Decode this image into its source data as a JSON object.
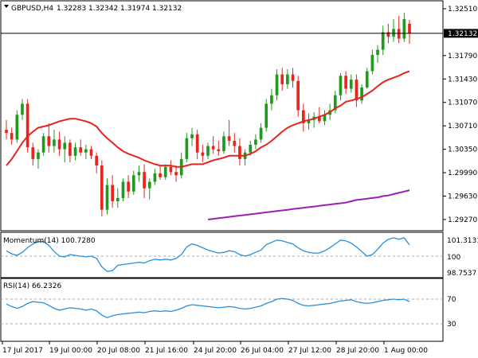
{
  "header": {
    "symbol": "GBPUSD,H4",
    "open": "1.32283",
    "high": "1.32342",
    "low": "1.31974",
    "close": "1.32132"
  },
  "colors": {
    "bull": "#1f9a1f",
    "bear": "#e8241c",
    "ma_fast": "#e8241c",
    "ma_slow": "#9b1fb5",
    "oscillator": "#2b8fd9",
    "current_price_box": "#000000"
  },
  "price_axis": {
    "ticks": [
      "1.32510",
      "1.31790",
      "1.31430",
      "1.31070",
      "1.30710",
      "1.30350",
      "1.29990",
      "1.29630",
      "1.29270"
    ],
    "current_price": "1.32132"
  },
  "momentum": {
    "title": "Momentum(14) 100.7280",
    "ticks": [
      "101.3131",
      "100",
      "98.7537"
    ]
  },
  "rsi": {
    "title": "RSI(14) 66.2326",
    "ticks": [
      "70",
      "30"
    ]
  },
  "time_axis": {
    "labels": [
      "17 Jul 2017",
      "19 Jul 00:00",
      "20 Jul 08:00",
      "21 Jul 16:00",
      "24 Jul 20:00",
      "26 Jul 04:00",
      "27 Jul 12:00",
      "28 Jul 20:00",
      "1 Aug 00:00"
    ]
  },
  "chart_data": {
    "type": "candlestick",
    "x_labels": [
      "17 Jul 2017",
      "19 Jul 00:00",
      "20 Jul 08:00",
      "21 Jul 16:00",
      "24 Jul 20:00",
      "26 Jul 04:00",
      "27 Jul 12:00",
      "28 Jul 20:00",
      "1 Aug 00:00"
    ],
    "ylim": [
      1.2911,
      1.3262
    ],
    "candles": [
      [
        1.3065,
        1.308,
        1.305,
        1.306
      ],
      [
        1.306,
        1.3068,
        1.3042,
        1.305
      ],
      [
        1.305,
        1.3095,
        1.3045,
        1.3088
      ],
      [
        1.3088,
        1.3112,
        1.308,
        1.3105
      ],
      [
        1.3105,
        1.3112,
        1.303,
        1.3038
      ],
      [
        1.3038,
        1.3045,
        1.301,
        1.302
      ],
      [
        1.302,
        1.3035,
        1.3005,
        1.303
      ],
      [
        1.303,
        1.306,
        1.3025,
        1.3055
      ],
      [
        1.3055,
        1.3075,
        1.303,
        1.304
      ],
      [
        1.304,
        1.3065,
        1.303,
        1.305
      ],
      [
        1.305,
        1.3062,
        1.3025,
        1.3035
      ],
      [
        1.3035,
        1.3055,
        1.3015,
        1.3045
      ],
      [
        1.3045,
        1.305,
        1.3015,
        1.3025
      ],
      [
        1.3025,
        1.3045,
        1.3018,
        1.3038
      ],
      [
        1.3038,
        1.305,
        1.3025,
        1.303
      ],
      [
        1.303,
        1.3042,
        1.302,
        1.3035
      ],
      [
        1.3035,
        1.304,
        1.302,
        1.3025
      ],
      [
        1.3025,
        1.303,
        1.2998,
        1.301
      ],
      [
        1.301,
        1.3018,
        1.2932,
        1.2942
      ],
      [
        1.2942,
        1.299,
        1.2935,
        1.298
      ],
      [
        1.298,
        1.2995,
        1.2945,
        1.2955
      ],
      [
        1.2955,
        1.2975,
        1.2945,
        1.296
      ],
      [
        1.296,
        1.299,
        1.2955,
        1.2985
      ],
      [
        1.2985,
        1.2995,
        1.296,
        1.297
      ],
      [
        1.297,
        1.3002,
        1.2965,
        1.2995
      ],
      [
        1.2995,
        1.301,
        1.2985,
        1.3
      ],
      [
        1.3,
        1.3012,
        1.296,
        1.2975
      ],
      [
        1.2975,
        1.299,
        1.2958,
        1.2985
      ],
      [
        1.2985,
        1.3005,
        1.298,
        1.2998
      ],
      [
        1.2998,
        1.301,
        1.2988,
        1.2992
      ],
      [
        1.2992,
        1.3012,
        1.2988,
        1.3008
      ],
      [
        1.3008,
        1.3018,
        1.2995,
        1.3
      ],
      [
        1.3,
        1.301,
        1.2985,
        1.2995
      ],
      [
        1.2995,
        1.303,
        1.299,
        1.302
      ],
      [
        1.302,
        1.306,
        1.3015,
        1.3052
      ],
      [
        1.3052,
        1.3068,
        1.304,
        1.3058
      ],
      [
        1.3058,
        1.3065,
        1.302,
        1.303
      ],
      [
        1.303,
        1.3042,
        1.3015,
        1.3025
      ],
      [
        1.3025,
        1.3045,
        1.302,
        1.304
      ],
      [
        1.304,
        1.3055,
        1.3028,
        1.3035
      ],
      [
        1.3035,
        1.3048,
        1.3025,
        1.3032
      ],
      [
        1.3032,
        1.3062,
        1.3028,
        1.3055
      ],
      [
        1.3055,
        1.308,
        1.304,
        1.3048
      ],
      [
        1.3048,
        1.306,
        1.303,
        1.304
      ],
      [
        1.304,
        1.3052,
        1.301,
        1.302
      ],
      [
        1.302,
        1.3035,
        1.301,
        1.303
      ],
      [
        1.303,
        1.3048,
        1.3025,
        1.3042
      ],
      [
        1.3042,
        1.3058,
        1.3035,
        1.305
      ],
      [
        1.305,
        1.3075,
        1.3045,
        1.3068
      ],
      [
        1.3068,
        1.3112,
        1.3062,
        1.3105
      ],
      [
        1.3105,
        1.3128,
        1.3095,
        1.3118
      ],
      [
        1.3118,
        1.3158,
        1.311,
        1.315
      ],
      [
        1.315,
        1.316,
        1.3125,
        1.3135
      ],
      [
        1.3135,
        1.3158,
        1.3128,
        1.315
      ],
      [
        1.315,
        1.316,
        1.313,
        1.314
      ],
      [
        1.314,
        1.3148,
        1.3085,
        1.3095
      ],
      [
        1.3095,
        1.3105,
        1.3062,
        1.3075
      ],
      [
        1.3075,
        1.309,
        1.3065,
        1.308
      ],
      [
        1.308,
        1.3092,
        1.3068,
        1.3085
      ],
      [
        1.3085,
        1.31,
        1.3075,
        1.3078
      ],
      [
        1.3078,
        1.3095,
        1.3072,
        1.3088
      ],
      [
        1.3088,
        1.3105,
        1.308,
        1.3095
      ],
      [
        1.3095,
        1.3125,
        1.309,
        1.3118
      ],
      [
        1.3118,
        1.3152,
        1.311,
        1.3148
      ],
      [
        1.3148,
        1.3155,
        1.312,
        1.3128
      ],
      [
        1.3128,
        1.315,
        1.3122,
        1.3142
      ],
      [
        1.3142,
        1.315,
        1.31,
        1.311
      ],
      [
        1.311,
        1.3135,
        1.3105,
        1.313
      ],
      [
        1.313,
        1.316,
        1.3128,
        1.3155
      ],
      [
        1.3155,
        1.3188,
        1.315,
        1.318
      ],
      [
        1.318,
        1.3195,
        1.3168,
        1.3188
      ],
      [
        1.3188,
        1.3225,
        1.318,
        1.3215
      ],
      [
        1.3215,
        1.3228,
        1.3198,
        1.3208
      ],
      [
        1.3208,
        1.3235,
        1.32,
        1.322
      ],
      [
        1.322,
        1.324,
        1.3198,
        1.3205
      ],
      [
        1.3205,
        1.3245,
        1.32,
        1.3235
      ],
      [
        1.3228,
        1.3234,
        1.3197,
        1.3213
      ]
    ],
    "series": [
      {
        "type": "line",
        "values": [
          1.301,
          1.302,
          1.3032,
          1.3045,
          1.3055,
          1.3062,
          1.3068,
          1.307,
          1.3072,
          1.3075,
          1.3078,
          1.308,
          1.3082,
          1.3082,
          1.308,
          1.3078,
          1.3075,
          1.307,
          1.306,
          1.3052,
          1.3045,
          1.3038,
          1.3032,
          1.3028,
          1.3025,
          1.3022,
          1.3018,
          1.3015,
          1.3012,
          1.301,
          1.301,
          1.301,
          1.3008,
          1.3008,
          1.301,
          1.3012,
          1.3012,
          1.3012,
          1.3015,
          1.3018,
          1.302,
          1.3022,
          1.3025,
          1.3025,
          1.3025,
          1.3025,
          1.3028,
          1.3032,
          1.3038,
          1.3042,
          1.3048,
          1.3055,
          1.3062,
          1.3068,
          1.3072,
          1.3075,
          1.3078,
          1.308,
          1.3082,
          1.3085,
          1.3088,
          1.3092,
          1.3098,
          1.3102,
          1.3108,
          1.311,
          1.3112,
          1.3115,
          1.312,
          1.3125,
          1.3132,
          1.3138,
          1.3142,
          1.3145,
          1.3148,
          1.3152,
          1.3155
        ]
      },
      {
        "type": "line",
        "values": [
          null,
          null,
          null,
          null,
          null,
          null,
          null,
          null,
          null,
          null,
          null,
          null,
          null,
          null,
          null,
          null,
          null,
          null,
          null,
          null,
          null,
          null,
          null,
          null,
          null,
          null,
          null,
          null,
          null,
          null,
          null,
          null,
          null,
          null,
          null,
          null,
          null,
          null,
          1.2927,
          1.2928,
          1.2929,
          1.293,
          1.2931,
          1.2932,
          1.2933,
          1.2934,
          1.2935,
          1.2936,
          1.2937,
          1.2938,
          1.2939,
          1.294,
          1.2941,
          1.2942,
          1.2943,
          1.2944,
          1.2945,
          1.2946,
          1.2947,
          1.2948,
          1.2949,
          1.295,
          1.2951,
          1.2952,
          1.2953,
          1.2955,
          1.2957,
          1.2958,
          1.2959,
          1.296,
          1.2961,
          1.2963,
          1.2964,
          1.2966,
          1.2968,
          1.297,
          1.2972
        ]
      }
    ],
    "momentum_values": [
      100.35,
      100.15,
      100.05,
      100.25,
      100.55,
      100.8,
      100.95,
      100.95,
      100.7,
      100.3,
      100.0,
      99.95,
      100.1,
      100.05,
      100.0,
      99.95,
      100.0,
      99.85,
      99.3,
      99.0,
      99.05,
      99.4,
      99.45,
      99.5,
      99.55,
      99.6,
      99.55,
      99.7,
      99.8,
      99.75,
      99.8,
      99.75,
      99.85,
      100.1,
      100.6,
      100.8,
      100.7,
      100.55,
      100.4,
      100.3,
      100.2,
      100.25,
      100.35,
      100.3,
      100.1,
      100.0,
      100.1,
      100.25,
      100.4,
      100.75,
      100.9,
      101.05,
      101.0,
      100.9,
      100.8,
      100.55,
      100.35,
      100.25,
      100.2,
      100.2,
      100.35,
      100.55,
      100.8,
      101.05,
      101.0,
      100.85,
      100.6,
      100.3,
      100.0,
      100.1,
      100.45,
      100.85,
      101.1,
      101.2,
      101.1,
      101.2,
      100.73
    ],
    "rsi_values": [
      62,
      58,
      55,
      58,
      63,
      66,
      65,
      64,
      60,
      55,
      52,
      54,
      56,
      55,
      54,
      52,
      54,
      51,
      44,
      40,
      43,
      45,
      46,
      47,
      48,
      49,
      48,
      50,
      51,
      50,
      51,
      50,
      52,
      55,
      59,
      61,
      60,
      59,
      58,
      57,
      56,
      57,
      58,
      57,
      55,
      54,
      55,
      57,
      59,
      63,
      66,
      70,
      71,
      70,
      68,
      63,
      60,
      59,
      60,
      61,
      62,
      63,
      65,
      67,
      68,
      69,
      66,
      64,
      63,
      64,
      66,
      68,
      69,
      70,
      69,
      70,
      66
    ]
  }
}
